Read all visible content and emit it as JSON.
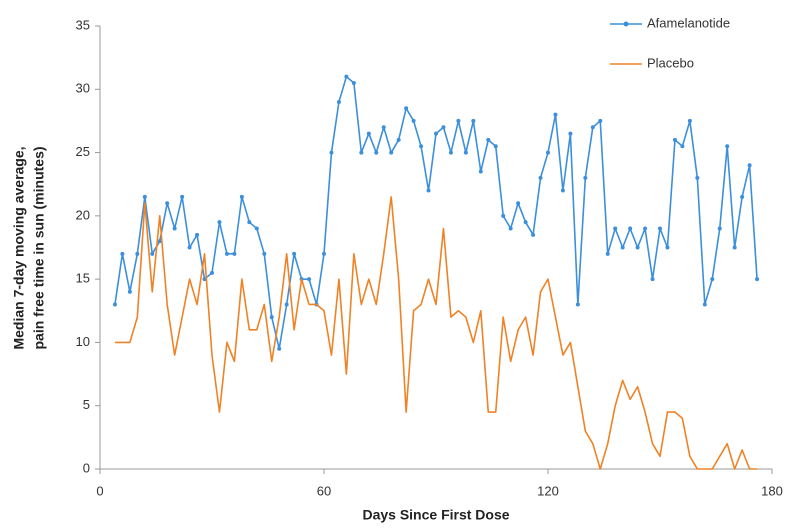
{
  "chart_data": {
    "type": "line",
    "xlabel": "Days Since First Dose",
    "ylabel": [
      "Median 7-day moving average,",
      "pain free time in sun (minutes)"
    ],
    "xlim": [
      0,
      180
    ],
    "xticks": [
      0,
      60,
      120,
      180
    ],
    "ylim": [
      0,
      35
    ],
    "yticks": [
      0,
      5,
      10,
      15,
      20,
      25,
      30,
      35
    ],
    "grid": false,
    "legend": "top-right",
    "x": [
      4,
      6,
      8,
      10,
      12,
      14,
      16,
      18,
      20,
      22,
      24,
      26,
      28,
      30,
      32,
      34,
      36,
      38,
      40,
      42,
      44,
      46,
      48,
      50,
      52,
      54,
      56,
      58,
      60,
      62,
      64,
      66,
      68,
      70,
      72,
      74,
      76,
      78,
      80,
      82,
      84,
      86,
      88,
      90,
      92,
      94,
      96,
      98,
      100,
      102,
      104,
      106,
      108,
      110,
      112,
      114,
      116,
      118,
      120,
      122,
      124,
      126,
      128,
      130,
      132,
      134,
      136,
      138,
      140,
      142,
      144,
      146,
      148,
      150,
      152,
      154,
      156,
      158,
      160,
      162,
      164,
      166,
      168,
      170,
      172,
      174,
      176
    ],
    "series": [
      {
        "name": "Afamelanotide",
        "color": "#3c8fdc",
        "markers": true,
        "values": [
          13,
          17,
          14,
          17,
          21.5,
          17,
          18,
          21,
          19,
          21.5,
          17.5,
          18.5,
          15,
          15.5,
          19.5,
          17,
          17,
          21.5,
          19.5,
          19,
          17,
          12,
          9.5,
          13,
          17,
          15,
          15,
          13,
          17,
          25,
          29,
          31,
          30.5,
          25,
          26.5,
          25,
          27,
          25,
          26,
          28.5,
          27.5,
          25.5,
          22,
          26.5,
          27,
          25,
          27.5,
          25,
          27.5,
          23.5,
          26,
          25.5,
          20,
          19,
          21,
          19.5,
          18.5,
          23,
          25,
          28,
          22,
          26.5,
          13,
          23,
          27,
          27.5,
          17,
          19,
          17.5,
          19,
          17.5,
          19,
          15,
          19,
          17.5,
          26,
          25.5,
          27.5,
          23,
          13,
          15,
          19,
          25.5,
          17.5,
          21.5,
          24,
          15
        ]
      },
      {
        "name": "Placebo",
        "color": "#f08226",
        "markers": false,
        "values": [
          10,
          10,
          10,
          12,
          21,
          14,
          20,
          13,
          9,
          12,
          15,
          13,
          17,
          9,
          4.5,
          10,
          8.5,
          15,
          11,
          11,
          13,
          8.5,
          12,
          17,
          11,
          15,
          13,
          13,
          12.5,
          9,
          15,
          7.5,
          17,
          13,
          15,
          13,
          17,
          21.5,
          15,
          4.5,
          12.5,
          13,
          15,
          13,
          19,
          12,
          12.5,
          12,
          10,
          12.5,
          4.5,
          4.5,
          12,
          8.5,
          11,
          12,
          9,
          14,
          15,
          12,
          9,
          10,
          6.5,
          3,
          2,
          0,
          2,
          5,
          7,
          5.5,
          6.5,
          4.5,
          2,
          1,
          4.5,
          4.5,
          4,
          1,
          0,
          0,
          0,
          1,
          2,
          0,
          1.5,
          0,
          0
        ]
      }
    ]
  }
}
